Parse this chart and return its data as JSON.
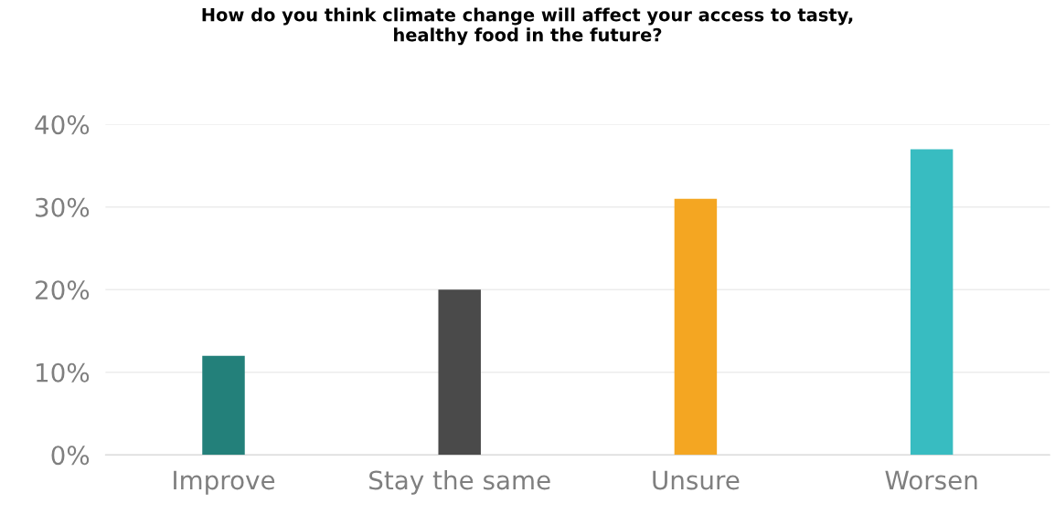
{
  "chart_data": {
    "type": "bar",
    "title": "How do you think climate change will affect your access to tasty,\nhealthy food in the future?",
    "categories": [
      "Improve",
      "Stay the same",
      "Unsure",
      "Worsen"
    ],
    "values": [
      12,
      20,
      31,
      37
    ],
    "colors": [
      "#23807a",
      "#4a4a4a",
      "#f4a622",
      "#38bcc1"
    ],
    "ylim": [
      0,
      40
    ],
    "yticks": [
      {
        "value": 0,
        "label": "0%"
      },
      {
        "value": 10,
        "label": "10%"
      },
      {
        "value": 20,
        "label": "20%"
      },
      {
        "value": 30,
        "label": "30%"
      },
      {
        "value": 40,
        "label": "40%"
      }
    ],
    "grid": "y",
    "legend": false
  }
}
